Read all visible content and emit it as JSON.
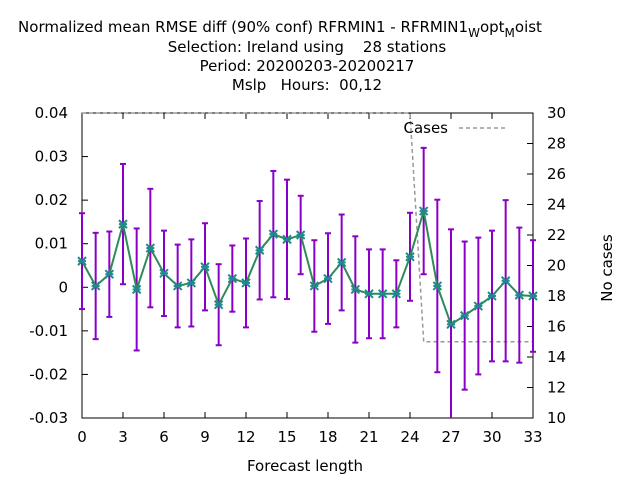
{
  "chart_data": {
    "type": "line",
    "title_lines": [
      "Normalized mean RMSE diff (90% conf) RFRMIN1 - RFRMIN1",
      "Selection: Ireland using    28 stations",
      "Period: 20200203-20200217",
      "Mslp   Hours:  00,12"
    ],
    "title_suffix": {
      "w": "W",
      "opt": "opt",
      "m": "M",
      "oist": "oist"
    },
    "xlabel": "Forecast length",
    "ylabel_right": "No cases",
    "xlim": [
      0,
      33
    ],
    "ylim": [
      -0.03,
      0.04
    ],
    "y2lim": [
      10,
      30
    ],
    "xticks": [
      "0",
      "3",
      "6",
      "9",
      "12",
      "15",
      "18",
      "21",
      "24",
      "27",
      "30",
      "33"
    ],
    "yticks": [
      "0.04",
      "0.03",
      "0.02",
      "0.01",
      "0",
      "-0.01",
      "-0.02",
      "-0.03"
    ],
    "y2ticks": [
      "30",
      "28",
      "26",
      "24",
      "22",
      "20",
      "18",
      "16",
      "14",
      "12",
      "10"
    ],
    "series": [
      {
        "color": "#2e8b57",
        "errorbar_color": "#8a00c8",
        "x": [
          0,
          1,
          2,
          3,
          4,
          5,
          6,
          7,
          8,
          9,
          10,
          11,
          12,
          13,
          14,
          15,
          16,
          17,
          18,
          19,
          20,
          21,
          22,
          23,
          24,
          25,
          26,
          27,
          28,
          29,
          30,
          31,
          32,
          33
        ],
        "y": [
          0.006,
          0.0003,
          0.003,
          0.0145,
          -0.0005,
          0.009,
          0.0032,
          0.0003,
          0.001,
          0.0047,
          -0.004,
          0.002,
          0.001,
          0.0085,
          0.0122,
          0.011,
          0.012,
          0.0003,
          0.002,
          0.0057,
          -0.0005,
          -0.0015,
          -0.0015,
          -0.0015,
          0.007,
          0.0175,
          0.0003,
          -0.0085,
          -0.0065,
          -0.0043,
          -0.002,
          0.0015,
          -0.0018,
          -0.002
        ],
        "err": [
          0.011,
          0.0122,
          0.0098,
          0.0138,
          0.014,
          0.0136,
          0.0098,
          0.0095,
          0.01,
          0.01,
          0.0093,
          0.0076,
          0.0102,
          0.0113,
          0.0145,
          0.0137,
          0.009,
          0.0105,
          0.0104,
          0.011,
          0.0122,
          0.0102,
          0.0102,
          0.0077,
          0.0101,
          0.0145,
          0.0198,
          0.0218,
          0.017,
          0.0157,
          0.015,
          0.0185,
          0.0155,
          0.0128
        ]
      },
      {
        "name": "Cases",
        "axis": "y2",
        "color": "#999999",
        "x": [
          0,
          1,
          2,
          3,
          4,
          5,
          6,
          7,
          8,
          9,
          10,
          11,
          12,
          13,
          14,
          15,
          16,
          17,
          18,
          19,
          20,
          21,
          22,
          23,
          24,
          25,
          26,
          27,
          28,
          29,
          30,
          31,
          32,
          33
        ],
        "y": [
          30,
          30,
          30,
          30,
          30,
          30,
          30,
          30,
          30,
          30,
          30,
          30,
          30,
          30,
          30,
          30,
          30,
          30,
          30,
          30,
          30,
          30,
          30,
          30,
          30,
          15,
          15,
          15,
          15,
          15,
          15,
          15,
          15,
          15
        ]
      }
    ],
    "legend_position": "top-right",
    "grid": false
  }
}
